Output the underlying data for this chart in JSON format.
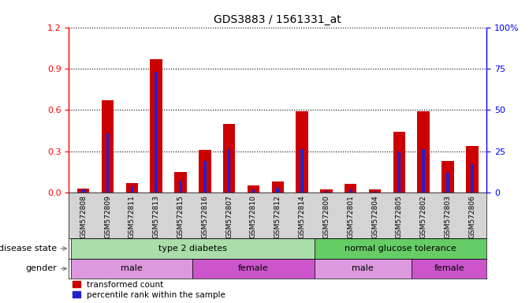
{
  "title": "GDS3883 / 1561331_at",
  "samples": [
    "GSM572808",
    "GSM572809",
    "GSM572811",
    "GSM572813",
    "GSM572815",
    "GSM572816",
    "GSM572807",
    "GSM572810",
    "GSM572812",
    "GSM572814",
    "GSM572800",
    "GSM572801",
    "GSM572804",
    "GSM572805",
    "GSM572802",
    "GSM572803",
    "GSM572806"
  ],
  "transformed_count": [
    0.03,
    0.67,
    0.07,
    0.97,
    0.15,
    0.31,
    0.5,
    0.05,
    0.08,
    0.59,
    0.02,
    0.06,
    0.02,
    0.44,
    0.59,
    0.23,
    0.34
  ],
  "percentile_rank_pct": [
    2,
    36,
    4,
    73,
    7,
    19,
    26,
    2,
    3,
    26,
    1,
    2,
    1,
    25,
    26,
    12,
    17
  ],
  "ylim_left": [
    0,
    1.2
  ],
  "ylim_right": [
    0,
    100
  ],
  "yticks_left": [
    0,
    0.3,
    0.6,
    0.9,
    1.2
  ],
  "yticks_right": [
    0,
    25,
    50,
    75,
    100
  ],
  "bar_color_red": "#cc0000",
  "bar_color_blue": "#2222cc",
  "disease_t2d_range": [
    0,
    9
  ],
  "disease_ngt_range": [
    10,
    16
  ],
  "gender_male1_range": [
    0,
    4
  ],
  "gender_female1_range": [
    5,
    9
  ],
  "gender_male2_range": [
    10,
    13
  ],
  "gender_female2_range": [
    14,
    16
  ],
  "disease_color": "#aaddaa",
  "disease_ngt_color": "#66cc66",
  "gender_color_light": "#dd99dd",
  "gender_color_dark": "#cc55cc",
  "legend_items": [
    "transformed count",
    "percentile rank within the sample"
  ],
  "annotation_row1_label": "disease state",
  "annotation_row2_label": "gender",
  "tick_bg_color": "#d4d4d4"
}
